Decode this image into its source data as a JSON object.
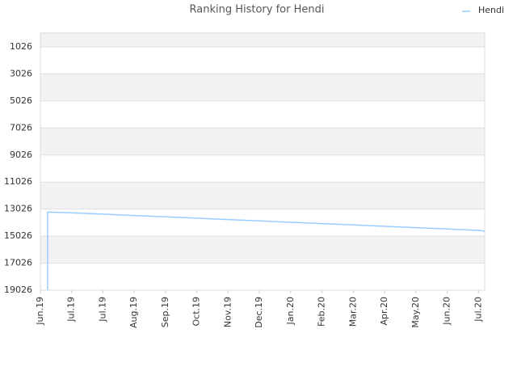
{
  "chart_data": {
    "type": "line",
    "title": "Ranking History for Hendi",
    "x": [
      0.23,
      0.23,
      1,
      2,
      3,
      4,
      5,
      6,
      7,
      8,
      9,
      10,
      11,
      12,
      13,
      14,
      14.2
    ],
    "series": [
      {
        "name": "Hendi",
        "color": "#99ccff",
        "values": [
          19026,
          13250,
          13300,
          13400,
          13500,
          13600,
          13700,
          13800,
          13900,
          14000,
          14100,
          14200,
          14300,
          14400,
          14500,
          14600,
          14660
        ]
      }
    ],
    "xlim": [
      0,
      14.2
    ],
    "xticks": [
      {
        "value": 0,
        "label": "Jun.19"
      },
      {
        "value": 1,
        "label": "Jul.19"
      },
      {
        "value": 2,
        "label": "Jul.19"
      },
      {
        "value": 3,
        "label": "Aug.19"
      },
      {
        "value": 4,
        "label": "Sep.19"
      },
      {
        "value": 5,
        "label": "Oct.19"
      },
      {
        "value": 6,
        "label": "Nov.19"
      },
      {
        "value": 7,
        "label": "Dec.19"
      },
      {
        "value": 8,
        "label": "Jan.20"
      },
      {
        "value": 9,
        "label": "Feb.20"
      },
      {
        "value": 10,
        "label": "Mar.20"
      },
      {
        "value": 11,
        "label": "Apr.20"
      },
      {
        "value": 12,
        "label": "May.20"
      },
      {
        "value": 13,
        "label": "Jun.20"
      },
      {
        "value": 14,
        "label": "Jul.20"
      }
    ],
    "ylim": [
      19026,
      0
    ],
    "yticks": [
      1026,
      3026,
      5026,
      7026,
      9026,
      11026,
      13026,
      15026,
      17026,
      19026
    ],
    "grid": true,
    "legend": "top-right"
  }
}
